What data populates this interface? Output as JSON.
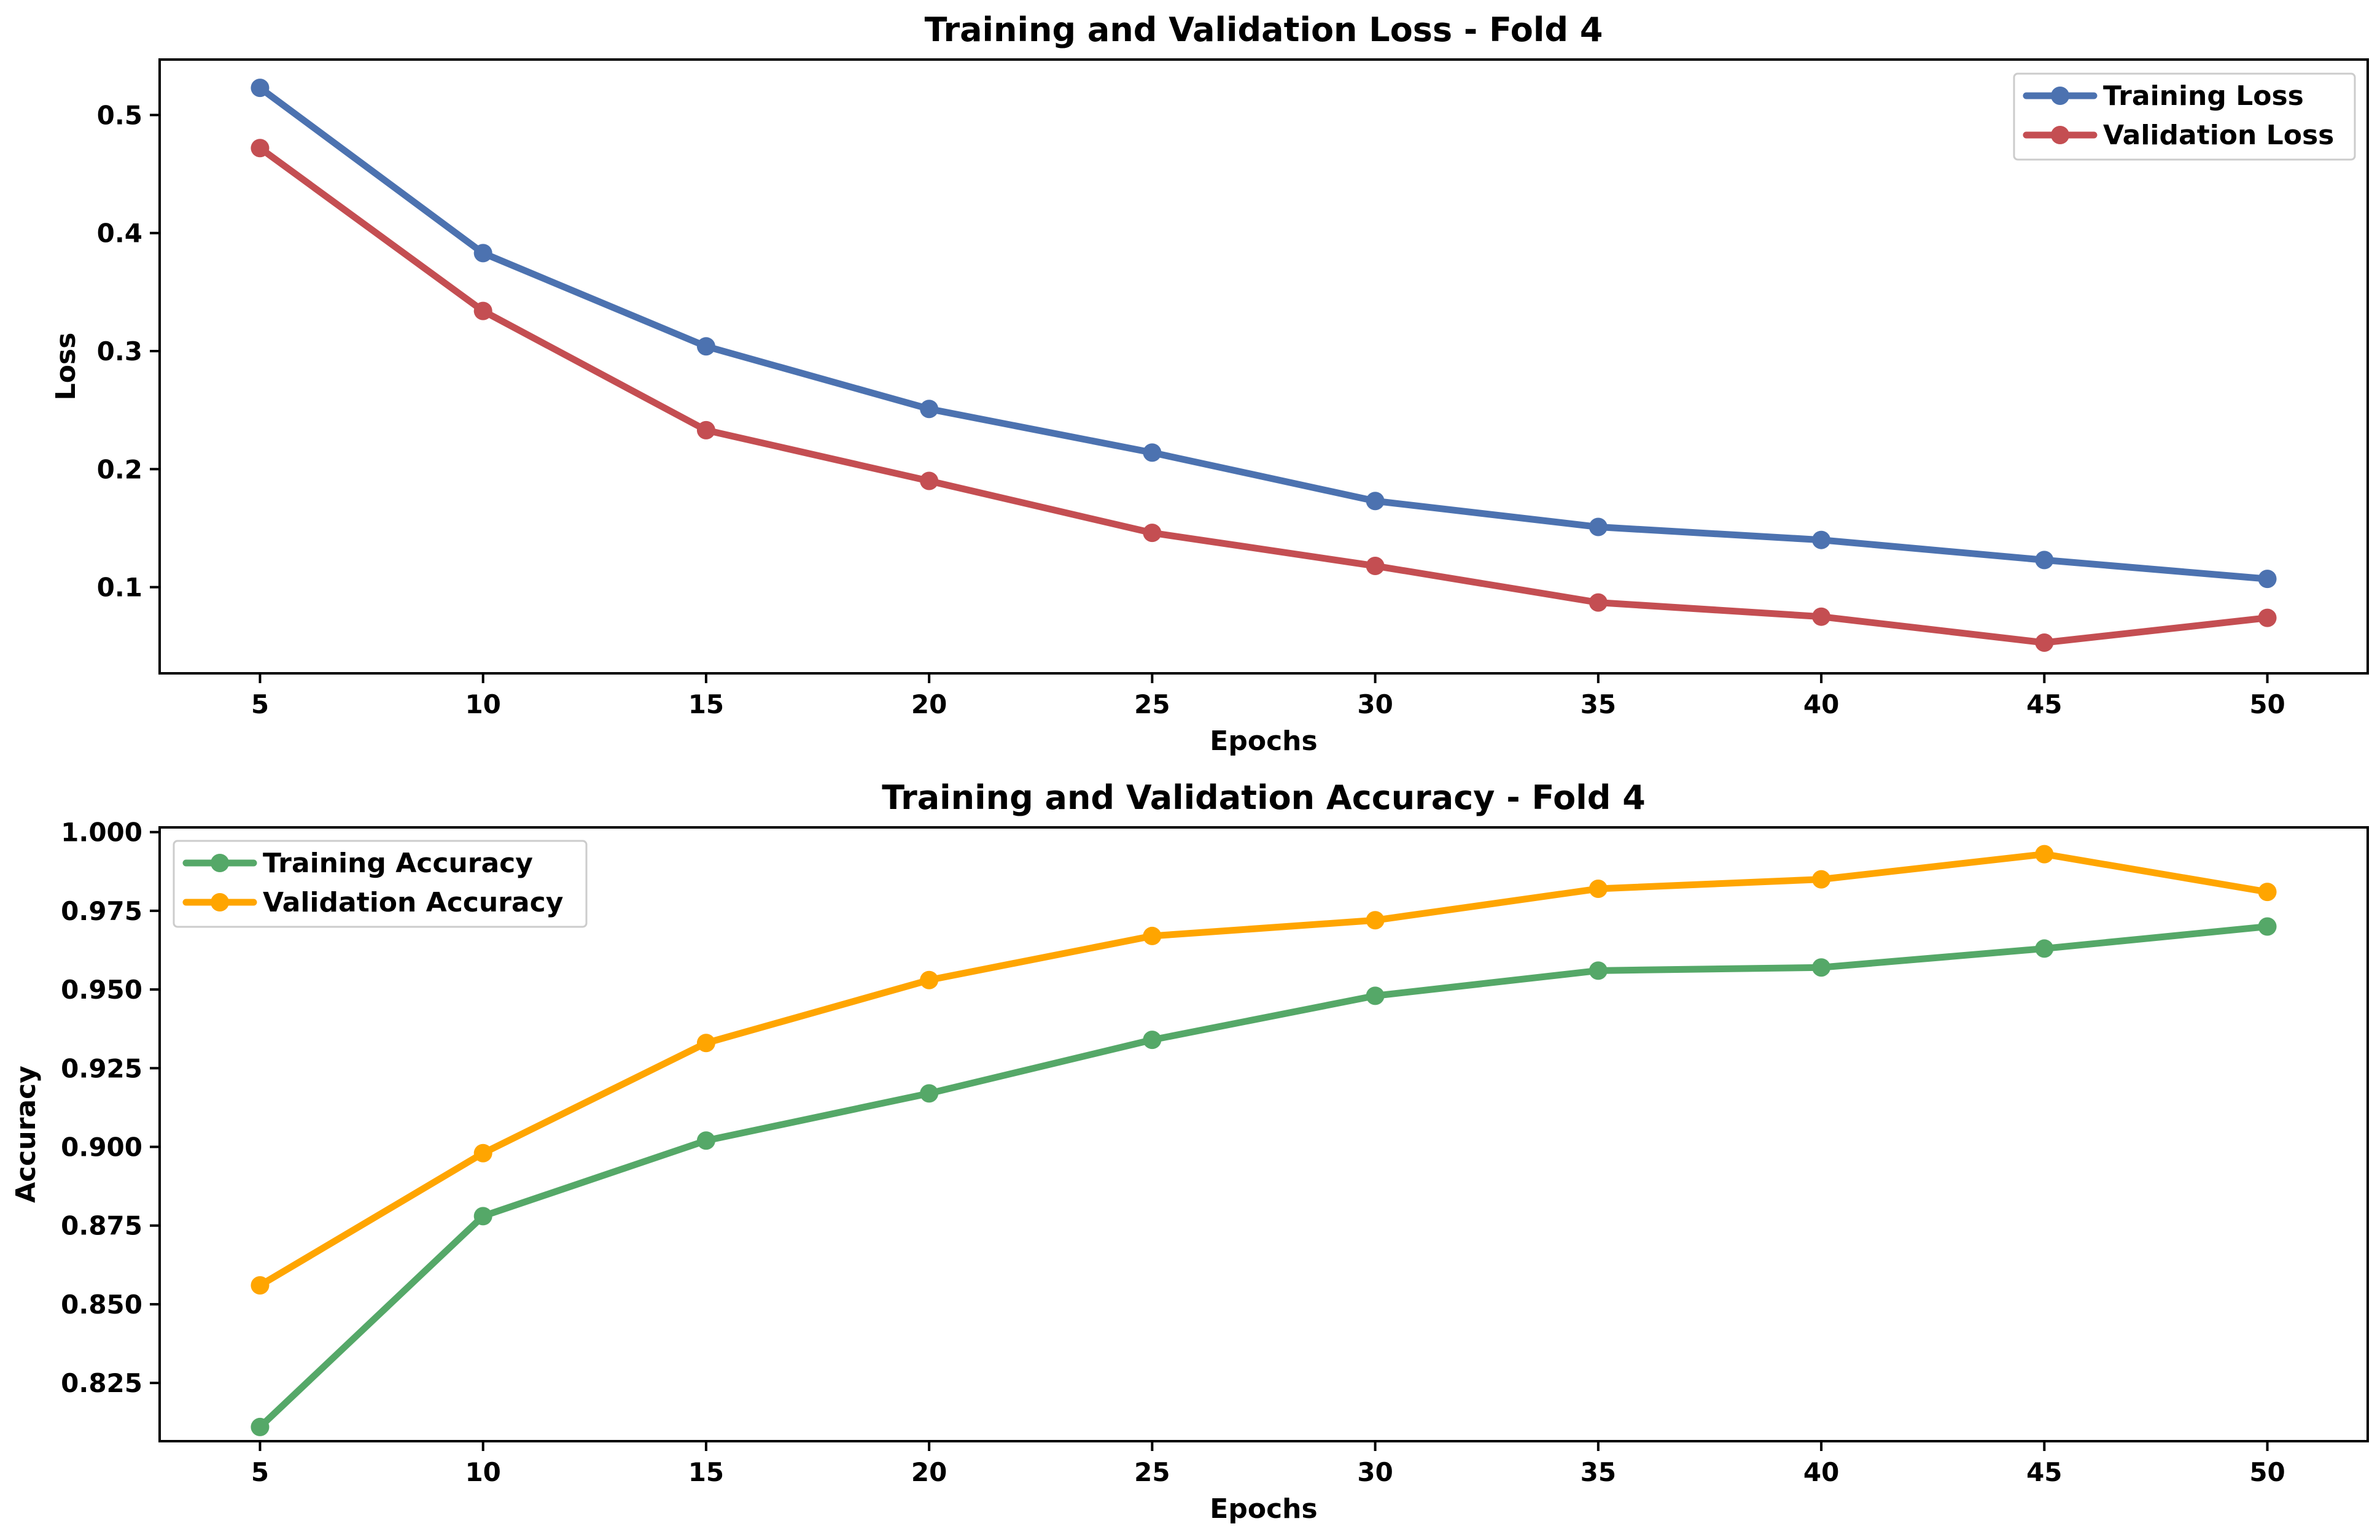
{
  "chart_data": [
    {
      "type": "line",
      "title": "Training and Validation Loss - Fold 4",
      "xlabel": "Epochs",
      "ylabel": "Loss",
      "x": [
        5,
        10,
        15,
        20,
        25,
        30,
        35,
        40,
        45,
        50
      ],
      "xlim": [
        2.75,
        52.25
      ],
      "ylim": [
        0.027,
        0.547
      ],
      "xticks": [
        5,
        10,
        15,
        20,
        25,
        30,
        35,
        40,
        45,
        50
      ],
      "yticks": [
        0.1,
        0.2,
        0.3,
        0.4,
        0.5
      ],
      "ytick_labels": [
        "0.1",
        "0.2",
        "0.3",
        "0.4",
        "0.5"
      ],
      "grid": false,
      "legend_position": "top-right",
      "series": [
        {
          "name": "Training Loss",
          "color": "#4c72b0",
          "values": [
            0.523,
            0.383,
            0.304,
            0.251,
            0.214,
            0.173,
            0.151,
            0.14,
            0.123,
            0.107
          ]
        },
        {
          "name": "Validation Loss",
          "color": "#c44e52",
          "values": [
            0.472,
            0.334,
            0.233,
            0.19,
            0.146,
            0.118,
            0.087,
            0.075,
            0.053,
            0.074
          ]
        }
      ]
    },
    {
      "type": "line",
      "title": "Training and Validation Accuracy - Fold 4",
      "xlabel": "Epochs",
      "ylabel": "Accuracy",
      "x": [
        5,
        10,
        15,
        20,
        25,
        30,
        35,
        40,
        45,
        50
      ],
      "xlim": [
        2.75,
        52.25
      ],
      "ylim": [
        0.8065,
        1.0015
      ],
      "xticks": [
        5,
        10,
        15,
        20,
        25,
        30,
        35,
        40,
        45,
        50
      ],
      "yticks": [
        0.825,
        0.85,
        0.875,
        0.9,
        0.925,
        0.95,
        0.975,
        1.0
      ],
      "ytick_labels": [
        "0.825",
        "0.850",
        "0.875",
        "0.900",
        "0.925",
        "0.950",
        "0.975",
        "1.000"
      ],
      "grid": false,
      "legend_position": "top-left",
      "series": [
        {
          "name": "Training Accuracy",
          "color": "#55a868",
          "values": [
            0.811,
            0.878,
            0.902,
            0.917,
            0.934,
            0.948,
            0.956,
            0.957,
            0.963,
            0.97
          ]
        },
        {
          "name": "Validation Accuracy",
          "color": "#ffa500",
          "values": [
            0.856,
            0.898,
            0.933,
            0.953,
            0.967,
            0.972,
            0.982,
            0.985,
            0.993,
            0.981
          ]
        }
      ]
    }
  ]
}
